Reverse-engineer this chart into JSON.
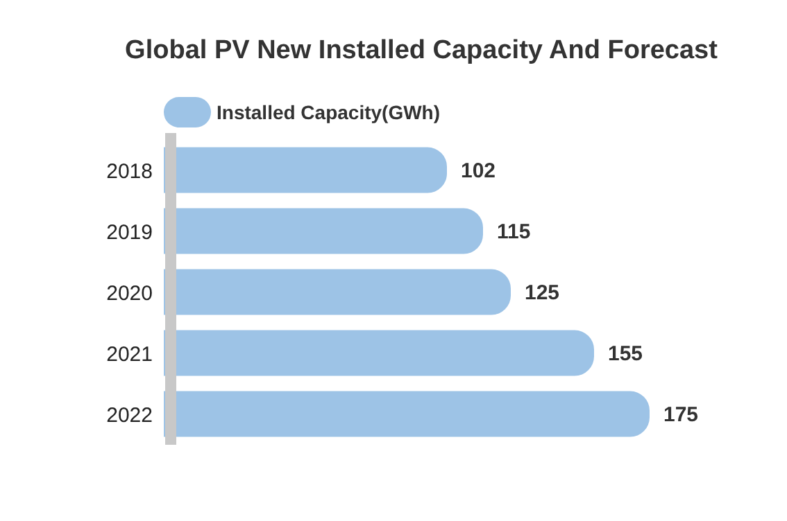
{
  "chart_data": {
    "type": "bar",
    "orientation": "horizontal",
    "title": "Global PV New Installed Capacity And Forecast",
    "categories": [
      "2018",
      "2019",
      "2020",
      "2021",
      "2022"
    ],
    "series": [
      {
        "name": "Installed Capacity(GWh)",
        "color": "#9dc3e6",
        "values": [
          102,
          115,
          125,
          155,
          175
        ]
      }
    ],
    "data_labels": true,
    "legend": "top left"
  }
}
